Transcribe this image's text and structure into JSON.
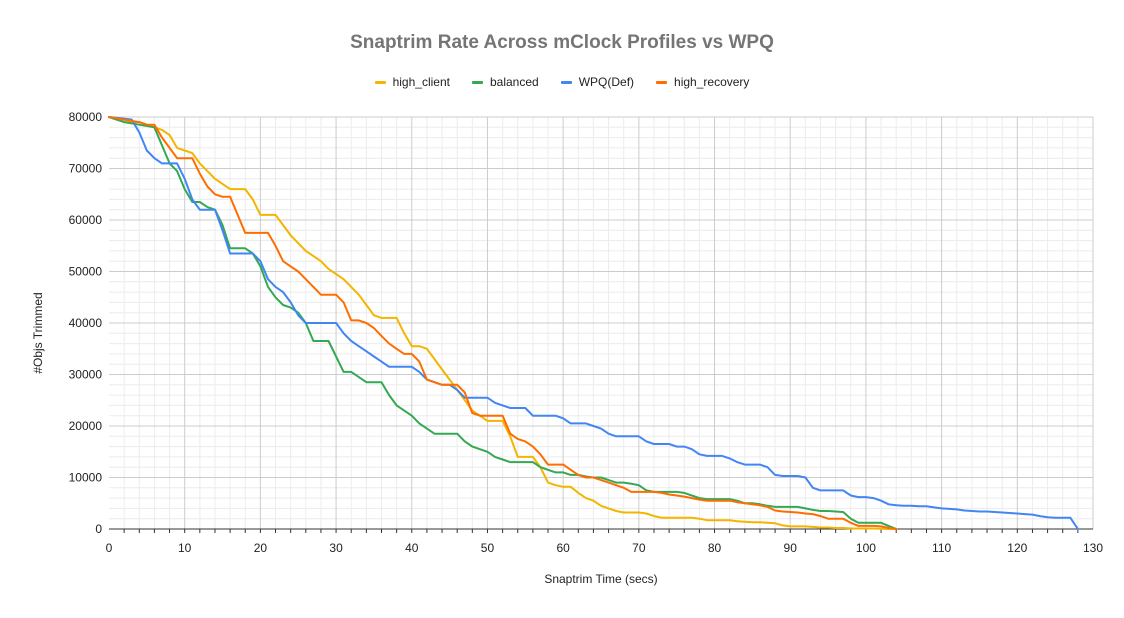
{
  "chart_data": {
    "type": "line",
    "title": "Snaptrim Rate Across mClock Profiles vs WPQ",
    "xlabel": "Snaptrim Time (secs)",
    "ylabel": "#Objs Trimmed",
    "xlim": [
      0,
      130
    ],
    "ylim": [
      0,
      80000
    ],
    "x_ticks": [
      0,
      10,
      20,
      30,
      40,
      50,
      60,
      70,
      80,
      90,
      100,
      110,
      120,
      130
    ],
    "y_ticks": [
      0,
      10000,
      20000,
      30000,
      40000,
      50000,
      60000,
      70000,
      80000
    ],
    "grid": true,
    "legend_position": "top",
    "series": [
      {
        "name": "high_client",
        "color": "#f4b400",
        "x": [
          0,
          2,
          4,
          6,
          7,
          8,
          9,
          10,
          11,
          12,
          13,
          14,
          16,
          17,
          18,
          19,
          20,
          21,
          22,
          23,
          24,
          25,
          26,
          27,
          28,
          29,
          30,
          31,
          32,
          33,
          34,
          35,
          36,
          37,
          38,
          39,
          40,
          41,
          42,
          43,
          44,
          45,
          46,
          47,
          48,
          49,
          50,
          51,
          52,
          53,
          54,
          55,
          56,
          57,
          58,
          59,
          60,
          61,
          62,
          63,
          64,
          65,
          66,
          67,
          68,
          69,
          70,
          71,
          72,
          73,
          74,
          75,
          76,
          77,
          78,
          79,
          80,
          81,
          82,
          83,
          84,
          85,
          86,
          87,
          88,
          89,
          90,
          91,
          92,
          93,
          94,
          95,
          96,
          97,
          98,
          99,
          100,
          101,
          102,
          103,
          104
        ],
        "y": [
          80000,
          79000,
          79000,
          78000,
          77500,
          76500,
          74000,
          73500,
          73000,
          71000,
          69500,
          68000,
          66000,
          66000,
          66000,
          64000,
          61000,
          61000,
          61000,
          59000,
          57000,
          55500,
          54000,
          53000,
          52000,
          50500,
          49500,
          48500,
          47000,
          45500,
          43500,
          41500,
          41000,
          41000,
          41000,
          38000,
          35500,
          35500,
          35000,
          33000,
          31000,
          29000,
          27000,
          25000,
          23000,
          22000,
          21000,
          21000,
          21000,
          18000,
          14000,
          14000,
          14000,
          12000,
          9000,
          8500,
          8200,
          8200,
          7000,
          6000,
          5500,
          4500,
          4000,
          3500,
          3200,
          3200,
          3200,
          3000,
          2500,
          2200,
          2200,
          2200,
          2200,
          2200,
          2000,
          1700,
          1700,
          1700,
          1700,
          1500,
          1400,
          1300,
          1300,
          1200,
          1100,
          700,
          500,
          500,
          500,
          400,
          300,
          300,
          200,
          200,
          100,
          100,
          100,
          100,
          50,
          0,
          0
        ]
      },
      {
        "name": "balanced",
        "color": "#34a853",
        "x": [
          0,
          2,
          4,
          6,
          8,
          9,
          10,
          11,
          12,
          13,
          14,
          15,
          16,
          17,
          18,
          19,
          20,
          21,
          22,
          23,
          24,
          25,
          26,
          27,
          28,
          29,
          30,
          31,
          32,
          33,
          34,
          35,
          36,
          37,
          38,
          39,
          40,
          41,
          42,
          43,
          44,
          45,
          46,
          47,
          48,
          49,
          50,
          51,
          52,
          53,
          54,
          55,
          56,
          57,
          58,
          59,
          60,
          61,
          62,
          63,
          64,
          65,
          66,
          67,
          68,
          69,
          70,
          71,
          72,
          73,
          74,
          75,
          76,
          77,
          78,
          79,
          80,
          81,
          82,
          83,
          84,
          85,
          86,
          87,
          88,
          89,
          90,
          91,
          92,
          93,
          94,
          95,
          96,
          97,
          98,
          99,
          100,
          101,
          102,
          103,
          104
        ],
        "y": [
          80000,
          79000,
          78500,
          78000,
          71000,
          69500,
          66000,
          63500,
          63500,
          62500,
          62000,
          59000,
          54500,
          54500,
          54500,
          53500,
          51000,
          47000,
          45000,
          43500,
          43000,
          42000,
          40000,
          36500,
          36500,
          36500,
          33500,
          30500,
          30500,
          29500,
          28500,
          28500,
          28500,
          26000,
          24000,
          23000,
          22000,
          20500,
          19500,
          18500,
          18500,
          18500,
          18500,
          17000,
          16000,
          15500,
          15000,
          14000,
          13500,
          13000,
          13000,
          13000,
          13000,
          12000,
          11500,
          11000,
          11000,
          10500,
          10500,
          10200,
          10000,
          10000,
          9500,
          9000,
          9000,
          8800,
          8500,
          7500,
          7200,
          7200,
          7200,
          7200,
          7000,
          6500,
          6000,
          5800,
          5800,
          5800,
          5800,
          5500,
          5000,
          5000,
          4800,
          4500,
          4300,
          4300,
          4300,
          4300,
          4000,
          3700,
          3500,
          3500,
          3400,
          3300,
          2000,
          1200,
          1200,
          1200,
          1200,
          600,
          0
        ]
      },
      {
        "name": "WPQ(Def)",
        "color": "#4285f4",
        "x": [
          0,
          3,
          4,
          5,
          6,
          7,
          8,
          9,
          10,
          11,
          12,
          13,
          14,
          15,
          16,
          17,
          18,
          19,
          20,
          21,
          22,
          23,
          24,
          25,
          26,
          27,
          28,
          29,
          30,
          31,
          32,
          33,
          34,
          35,
          36,
          37,
          38,
          39,
          40,
          41,
          42,
          43,
          44,
          45,
          46,
          47,
          48,
          49,
          50,
          51,
          52,
          53,
          54,
          55,
          56,
          57,
          58,
          59,
          60,
          61,
          62,
          63,
          64,
          65,
          66,
          67,
          68,
          69,
          70,
          71,
          72,
          73,
          74,
          75,
          76,
          77,
          78,
          79,
          80,
          81,
          82,
          83,
          84,
          85,
          86,
          87,
          88,
          89,
          90,
          91,
          92,
          93,
          94,
          95,
          96,
          97,
          98,
          99,
          100,
          101,
          102,
          103,
          104,
          105,
          106,
          107,
          108,
          109,
          110,
          111,
          112,
          113,
          114,
          115,
          116,
          117,
          118,
          119,
          120,
          121,
          122,
          123,
          124,
          125,
          126,
          127,
          128
        ],
        "y": [
          80000,
          79500,
          77000,
          73500,
          72000,
          71000,
          71000,
          71000,
          68000,
          64000,
          62000,
          62000,
          62000,
          58000,
          53500,
          53500,
          53500,
          53500,
          52000,
          48500,
          47000,
          46000,
          44000,
          41500,
          40000,
          40000,
          40000,
          40000,
          40000,
          38000,
          36500,
          35500,
          34500,
          33500,
          32500,
          31500,
          31500,
          31500,
          31500,
          30500,
          29000,
          28500,
          28000,
          28000,
          27000,
          25500,
          25500,
          25500,
          25500,
          24500,
          24000,
          23500,
          23500,
          23500,
          22000,
          22000,
          22000,
          22000,
          21500,
          20500,
          20500,
          20500,
          20000,
          19500,
          18500,
          18000,
          18000,
          18000,
          18000,
          17000,
          16500,
          16500,
          16500,
          16000,
          16000,
          15500,
          14500,
          14200,
          14200,
          14200,
          13700,
          13000,
          12500,
          12500,
          12500,
          12000,
          10500,
          10300,
          10300,
          10300,
          10000,
          8000,
          7500,
          7500,
          7500,
          7500,
          6500,
          6200,
          6200,
          6000,
          5500,
          4800,
          4600,
          4500,
          4500,
          4400,
          4400,
          4200,
          4000,
          3900,
          3800,
          3600,
          3500,
          3400,
          3400,
          3300,
          3200,
          3100,
          3000,
          2900,
          2800,
          2500,
          2300,
          2200,
          2200,
          2200,
          0
        ]
      },
      {
        "name": "high_recovery",
        "color": "#ff6d01",
        "x": [
          0,
          2,
          4,
          5,
          6,
          7,
          8,
          9,
          10,
          11,
          12,
          13,
          14,
          15,
          16,
          17,
          18,
          19,
          20,
          21,
          22,
          23,
          24,
          25,
          26,
          27,
          28,
          29,
          30,
          31,
          32,
          33,
          34,
          35,
          36,
          37,
          38,
          39,
          40,
          41,
          42,
          43,
          44,
          45,
          46,
          47,
          48,
          49,
          50,
          51,
          52,
          53,
          54,
          55,
          56,
          57,
          58,
          59,
          60,
          61,
          62,
          63,
          64,
          65,
          66,
          67,
          68,
          69,
          70,
          71,
          72,
          73,
          74,
          75,
          76,
          77,
          78,
          79,
          80,
          81,
          82,
          83,
          84,
          85,
          86,
          87,
          88,
          89,
          90,
          91,
          92,
          93,
          94,
          95,
          96,
          97,
          98,
          99,
          100,
          101,
          102,
          103,
          104
        ],
        "y": [
          80000,
          79500,
          79000,
          78500,
          78500,
          76000,
          74000,
          72000,
          72000,
          72000,
          69000,
          66500,
          65000,
          64500,
          64500,
          61000,
          57500,
          57500,
          57500,
          57500,
          55000,
          52000,
          51000,
          50000,
          48500,
          47000,
          45500,
          45500,
          45500,
          44000,
          40500,
          40500,
          40000,
          39000,
          37500,
          36000,
          35000,
          34000,
          34000,
          32500,
          29000,
          28500,
          28000,
          28000,
          28000,
          26500,
          22500,
          22000,
          22000,
          22000,
          22000,
          18500,
          17500,
          17000,
          16000,
          14500,
          12500,
          12500,
          12500,
          11500,
          10500,
          10000,
          10000,
          9500,
          9000,
          8500,
          8000,
          7200,
          7200,
          7200,
          7200,
          7000,
          6700,
          6500,
          6300,
          6000,
          5700,
          5500,
          5500,
          5500,
          5500,
          5200,
          5000,
          4800,
          4600,
          4300,
          3600,
          3400,
          3300,
          3200,
          3000,
          2900,
          2500,
          2000,
          2000,
          2000,
          1200,
          600,
          600,
          600,
          500,
          200,
          0
        ]
      }
    ]
  }
}
